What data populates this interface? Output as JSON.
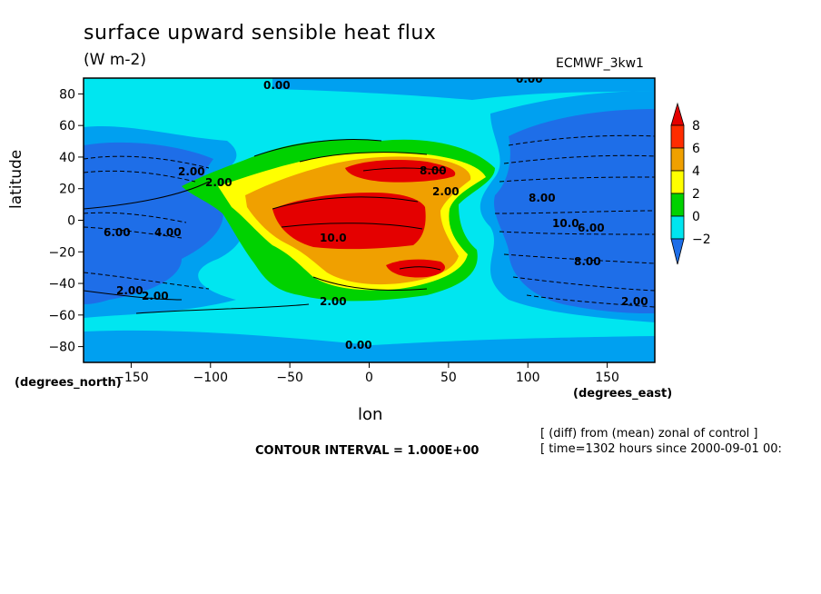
{
  "chart_data": {
    "type": "heatmap",
    "title": "surface upward sensible heat flux",
    "units": "(W m-2)",
    "dataset": "ECMWF_3kw1",
    "xlabel": "lon",
    "xlabel_unit": "(degrees_east)",
    "ylabel": "latitude",
    "ylabel_unit": "(degrees_north)",
    "xlim": [
      -180,
      180
    ],
    "ylim": [
      -90,
      90
    ],
    "x_ticks": [
      -150,
      -100,
      -50,
      0,
      50,
      100,
      150
    ],
    "y_ticks": [
      80,
      60,
      40,
      20,
      0,
      -20,
      -40,
      -60,
      -80
    ],
    "colorbar": {
      "levels": [
        -2,
        0,
        2,
        4,
        6,
        8
      ],
      "labels": [
        "8",
        "6",
        "4",
        "2",
        "0",
        "−2"
      ],
      "colors": [
        "#1e6ee8",
        "#00e6f0",
        "#00d200",
        "#ffff00",
        "#f0a000",
        "#ff2c00",
        "#e40000"
      ]
    },
    "contour_labels": [
      "0.00",
      "0.00",
      "2.00",
      "2.00",
      "2.00",
      "2.00",
      "2.00",
      "2.00",
      "4.00",
      "6.00",
      "6.00",
      "8.00",
      "8.00",
      "8.00",
      "10.0",
      "10.0",
      "0.00",
      "2.00"
    ],
    "contour_interval": "CONTOUR INTERVAL = 1.000E+00",
    "notes": [
      "[ (diff) from (mean) zonal of control ]",
      "[ time=1302 hours since 2000-09-01 00:"
    ]
  }
}
